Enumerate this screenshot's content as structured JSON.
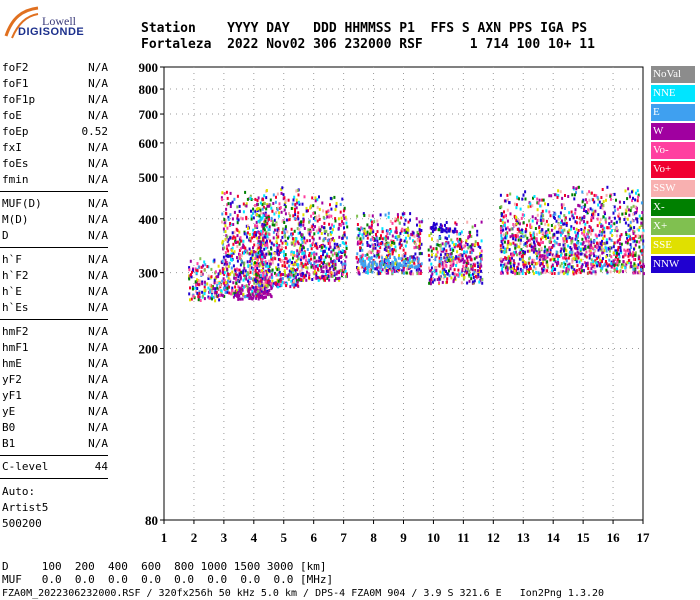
{
  "logo": {
    "line1": "Lowell",
    "line2": "DIGISONDE"
  },
  "header": {
    "line1": "Station    YYYY DAY   DDD HHMMSS P1  FFS S AXN PPS IGA PS",
    "line2": "Fortaleza  2022 Nov02 306 232000 RSF      1 714 100 10+ 11"
  },
  "params_group1": [
    {
      "name": "foF2",
      "value": "N/A"
    },
    {
      "name": "foF1",
      "value": "N/A"
    },
    {
      "name": "foF1p",
      "value": "N/A"
    },
    {
      "name": "foE",
      "value": "N/A"
    },
    {
      "name": "foEp",
      "value": "0.52"
    },
    {
      "name": "fxI",
      "value": "N/A"
    },
    {
      "name": "foEs",
      "value": "N/A"
    },
    {
      "name": "fmin",
      "value": "N/A"
    }
  ],
  "params_group2": [
    {
      "name": "MUF(D)",
      "value": "N/A"
    },
    {
      "name": "M(D)",
      "value": "N/A"
    },
    {
      "name": "D",
      "value": "N/A"
    }
  ],
  "params_group3": [
    {
      "name": "h`F",
      "value": "N/A"
    },
    {
      "name": "h`F2",
      "value": "N/A"
    },
    {
      "name": "h`E",
      "value": "N/A"
    },
    {
      "name": "h`Es",
      "value": "N/A"
    }
  ],
  "params_group4": [
    {
      "name": "hmF2",
      "value": "N/A"
    },
    {
      "name": "hmF1",
      "value": "N/A"
    },
    {
      "name": "hmE",
      "value": "N/A"
    },
    {
      "name": "yF2",
      "value": "N/A"
    },
    {
      "name": "yF1",
      "value": "N/A"
    },
    {
      "name": "yE",
      "value": "N/A"
    },
    {
      "name": "B0",
      "value": "N/A"
    },
    {
      "name": "B1",
      "value": "N/A"
    }
  ],
  "clevel": {
    "name": "C-level",
    "value": "44"
  },
  "auto": {
    "line1": "Auto:",
    "line2": "Artist5",
    "line3": "500200"
  },
  "footer": {
    "d_row": "D     100  200  400  600  800 1000 1500 3000 [km]",
    "muf_row": "MUF   0.0  0.0  0.0  0.0  0.0  0.0  0.0  0.0 [MHz]",
    "file_row": "FZA0M_2022306232000.RSF / 320fx256h 50 kHz 5.0 km / DPS-4 FZA0M 904 / 3.9 S 321.6 E   Ion2Png 1.3.20"
  },
  "colors": {
    "NoVal": "#8c8c8c",
    "NNE": "#00e5ff",
    "E": "#3fa0f0",
    "W": "#a000a0",
    "Vo-": "#ff40a0",
    "Vo+": "#f00030",
    "SSW": "#f8b0b0",
    "X-": "#008000",
    "X+": "#80c050",
    "SSE": "#e0e000",
    "NNW": "#2000d0"
  },
  "chart_data": {
    "type": "scatter",
    "title": "",
    "xlabel": "",
    "ylabel": "",
    "xlim": [
      1,
      17
    ],
    "ylim": [
      80,
      900
    ],
    "y_scale": "log",
    "x_ticks": [
      1,
      2,
      3,
      4,
      5,
      6,
      7,
      8,
      9,
      10,
      11,
      12,
      13,
      14,
      15,
      16,
      17
    ],
    "y_ticks": [
      80,
      200,
      300,
      400,
      500,
      600,
      700,
      800,
      900
    ],
    "legend": [
      "NoVal",
      "NNE",
      "E",
      "W",
      "Vo-",
      "Vo+",
      "SSW",
      "X-",
      "X+",
      "SSE",
      "NNW"
    ],
    "legend_position": "right",
    "clusters": [
      {
        "x": [
          1.8,
          2.9
        ],
        "y": [
          260,
          330
        ],
        "series": "mix"
      },
      {
        "x": [
          2.9,
          4.5
        ],
        "y": [
          265,
          470
        ],
        "series": "mix"
      },
      {
        "x": [
          3.4,
          4.6
        ],
        "y": [
          262,
          285
        ],
        "series": "W"
      },
      {
        "x": [
          4.0,
          5.5
        ],
        "y": [
          280,
          480
        ],
        "series": "mix"
      },
      {
        "x": [
          5.5,
          7.1
        ],
        "y": [
          290,
          460
        ],
        "series": "mix"
      },
      {
        "x": [
          7.4,
          9.6
        ],
        "y": [
          300,
          420
        ],
        "series": "mix"
      },
      {
        "x": [
          7.5,
          9.5
        ],
        "y": [
          310,
          330
        ],
        "series": "E"
      },
      {
        "x": [
          9.8,
          11.6
        ],
        "y": [
          285,
          400
        ],
        "series": "mix"
      },
      {
        "x": [
          9.9,
          10.7
        ],
        "y": [
          375,
          400
        ],
        "series": "NNW"
      },
      {
        "x": [
          12.2,
          13.6
        ],
        "y": [
          300,
          470
        ],
        "series": "mix"
      },
      {
        "x": [
          13.6,
          17.0
        ],
        "y": [
          300,
          480
        ],
        "series": "mix"
      }
    ]
  }
}
